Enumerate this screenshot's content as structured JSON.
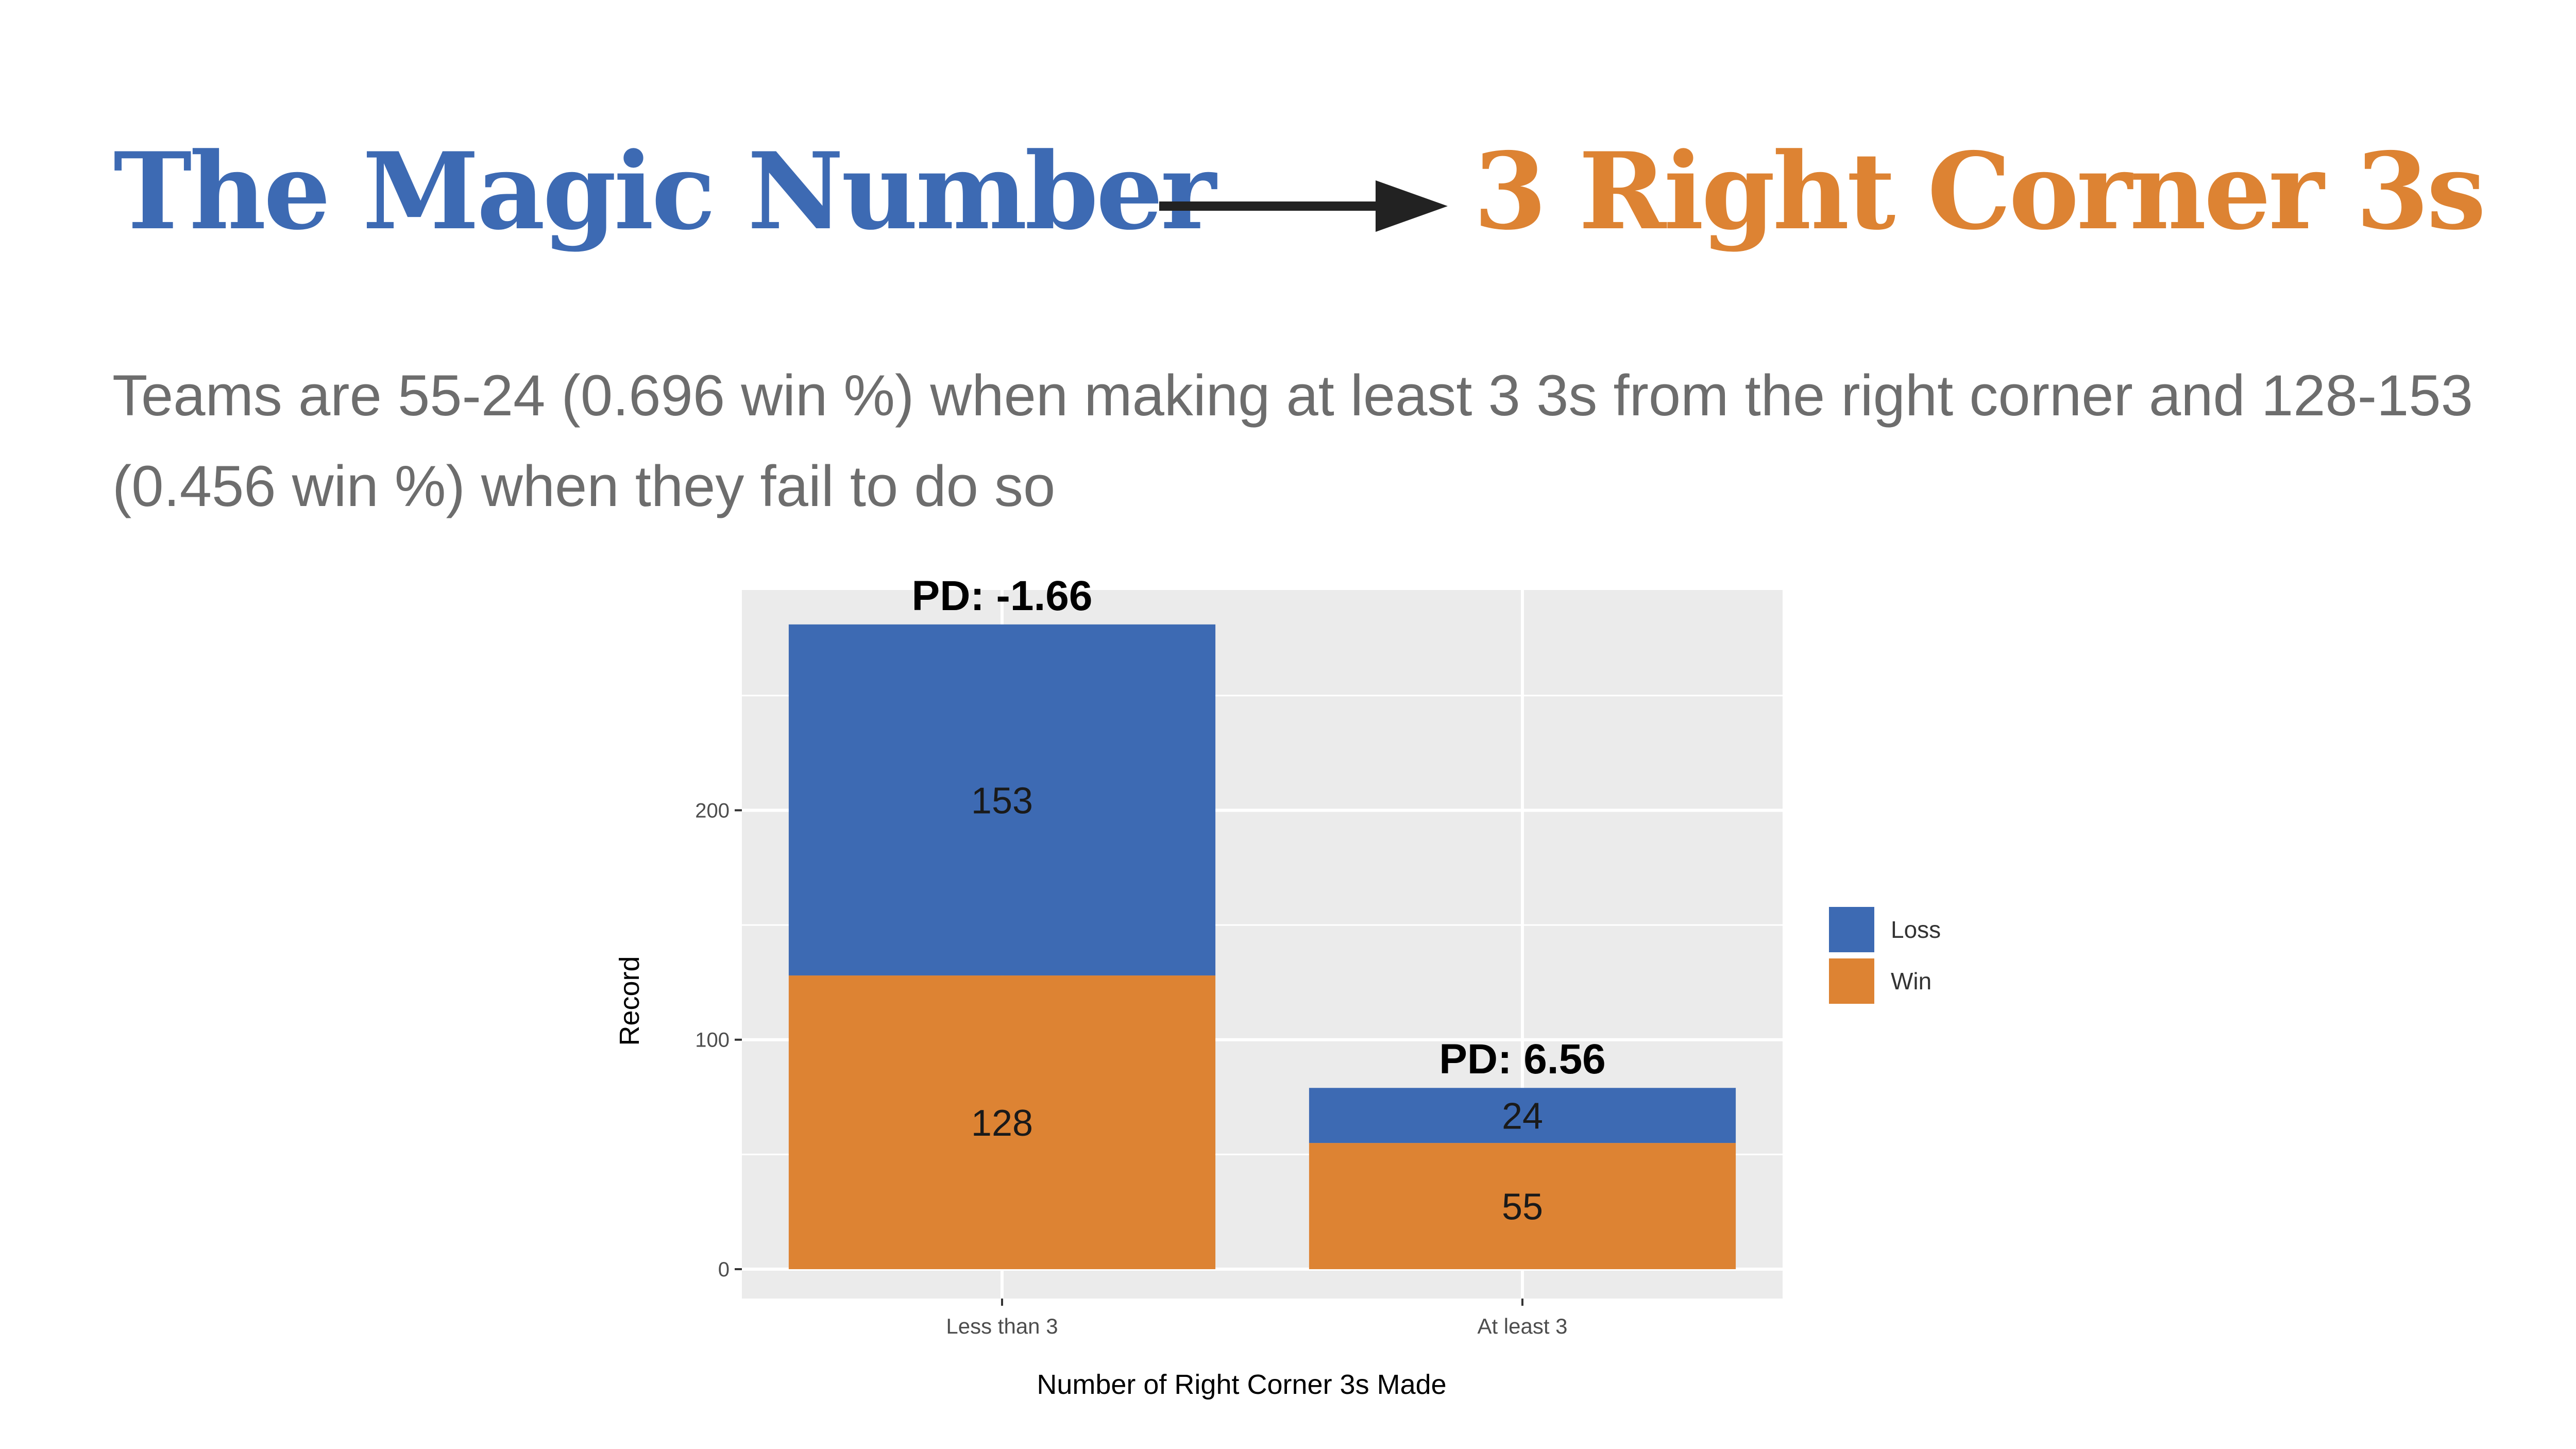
{
  "slide": {
    "title_left": "The Magic Number",
    "title_right": "3 Right Corner 3s",
    "subtitle": "Teams are 55-24 (0.696 win %) when making at least 3 3s from the right corner and 128-153 (0.456 win %) when they fail to do so"
  },
  "colors": {
    "loss": "#3d6ab3",
    "win": "#dd8333",
    "panel": "#ebebeb",
    "title_left": "#3d6ab3",
    "title_right": "#dd8333"
  },
  "chart_data": {
    "type": "bar",
    "stacked": true,
    "categories": [
      "Less than 3",
      "At least 3"
    ],
    "series": [
      {
        "name": "Win",
        "values": [
          128,
          55
        ]
      },
      {
        "name": "Loss",
        "values": [
          153,
          24
        ]
      }
    ],
    "annotations": [
      "PD: -1.66",
      "PD: 6.56"
    ],
    "xlabel": "Number of Right Corner 3s Made",
    "ylabel": "Record",
    "ylim": [
      0,
      296
    ],
    "yticks": [
      0,
      100,
      200
    ],
    "grid": true,
    "legend": {
      "position": "right",
      "entries": [
        "Loss",
        "Win"
      ]
    }
  }
}
